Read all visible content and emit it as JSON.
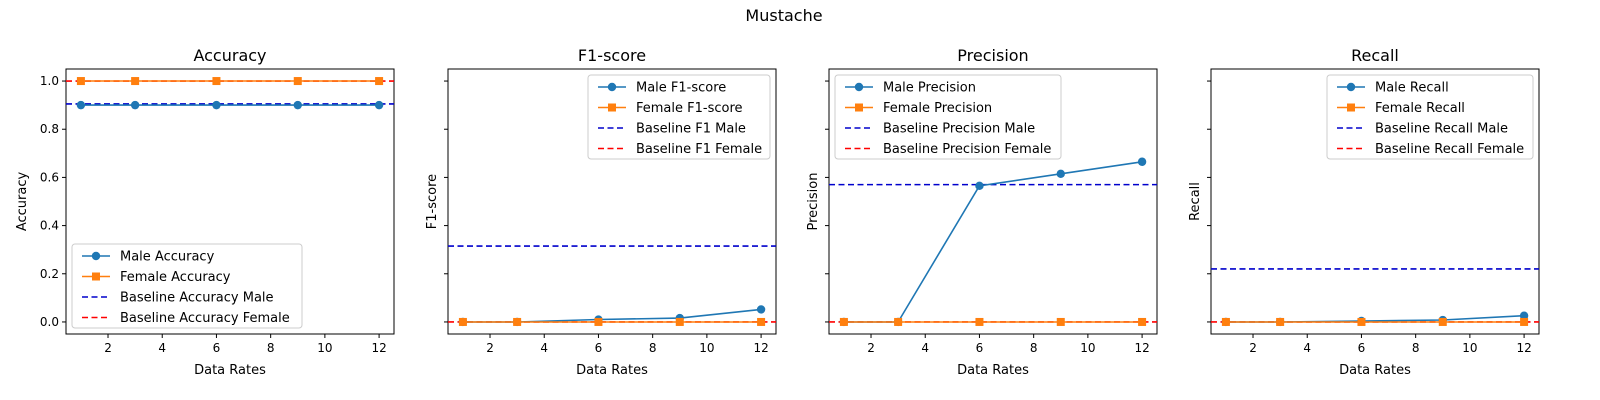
{
  "figure": {
    "suptitle": "Mustache"
  },
  "chart_data": [
    {
      "type": "line",
      "title": "Accuracy",
      "xlabel": "Data Rates",
      "ylabel": "Accuracy",
      "xlim": [
        0.45,
        12.55
      ],
      "ylim": [
        -0.05,
        1.05
      ],
      "xticks": [
        2,
        4,
        6,
        8,
        10,
        12
      ],
      "yticks": [
        0.0,
        0.2,
        0.4,
        0.6,
        0.8,
        1.0
      ],
      "ytick_labels": [
        "0.0",
        "0.2",
        "0.4",
        "0.6",
        "0.8",
        "1.0"
      ],
      "show_yticklabels": true,
      "legend_position": "lower-left",
      "x": [
        1,
        3,
        6,
        9,
        12
      ],
      "series": [
        {
          "name": "Male Accuracy",
          "values": [
            0.9,
            0.9,
            0.9,
            0.9,
            0.9
          ],
          "color": "#1f77b4",
          "marker": "circle"
        },
        {
          "name": "Female Accuracy",
          "values": [
            1.0,
            1.0,
            1.0,
            1.0,
            1.0
          ],
          "color": "#ff7f0e",
          "marker": "square"
        }
      ],
      "baselines": [
        {
          "name": "Baseline Accuracy Male",
          "value": 0.905,
          "color": "#0000cc"
        },
        {
          "name": "Baseline Accuracy Female",
          "value": 1.0,
          "color": "#ff0000"
        }
      ]
    },
    {
      "type": "line",
      "title": "F1-score",
      "xlabel": "Data Rates",
      "ylabel": "F1-score",
      "xlim": [
        0.45,
        12.55
      ],
      "ylim": [
        -0.05,
        1.05
      ],
      "xticks": [
        2,
        4,
        6,
        8,
        10,
        12
      ],
      "yticks": [
        0.0,
        0.2,
        0.4,
        0.6,
        0.8,
        1.0
      ],
      "show_yticklabels": false,
      "legend_position": "upper-right",
      "x": [
        1,
        3,
        6,
        9,
        12
      ],
      "series": [
        {
          "name": "Male F1-score",
          "values": [
            0.0,
            0.0,
            0.01,
            0.016,
            0.052
          ],
          "color": "#1f77b4",
          "marker": "circle"
        },
        {
          "name": "Female F1-score",
          "values": [
            0.0,
            0.0,
            0.0,
            0.0,
            0.0
          ],
          "color": "#ff7f0e",
          "marker": "square"
        }
      ],
      "baselines": [
        {
          "name": "Baseline F1 Male",
          "value": 0.315,
          "color": "#0000cc"
        },
        {
          "name": "Baseline F1 Female",
          "value": 0.0,
          "color": "#ff0000"
        }
      ]
    },
    {
      "type": "line",
      "title": "Precision",
      "xlabel": "Data Rates",
      "ylabel": "Precision",
      "xlim": [
        0.45,
        12.55
      ],
      "ylim": [
        -0.05,
        1.05
      ],
      "xticks": [
        2,
        4,
        6,
        8,
        10,
        12
      ],
      "yticks": [
        0.0,
        0.2,
        0.4,
        0.6,
        0.8,
        1.0
      ],
      "show_yticklabels": false,
      "legend_position": "upper-left",
      "x": [
        1,
        3,
        6,
        9,
        12
      ],
      "series": [
        {
          "name": "Male Precision",
          "values": [
            0.0,
            0.0,
            0.565,
            0.615,
            0.665
          ],
          "color": "#1f77b4",
          "marker": "circle"
        },
        {
          "name": "Female Precision",
          "values": [
            0.0,
            0.0,
            0.0,
            0.0,
            0.0
          ],
          "color": "#ff7f0e",
          "marker": "square"
        }
      ],
      "baselines": [
        {
          "name": "Baseline Precision Male",
          "value": 0.57,
          "color": "#0000cc"
        },
        {
          "name": "Baseline Precision Female",
          "value": 0.0,
          "color": "#ff0000"
        }
      ]
    },
    {
      "type": "line",
      "title": "Recall",
      "xlabel": "Data Rates",
      "ylabel": "Recall",
      "xlim": [
        0.45,
        12.55
      ],
      "ylim": [
        -0.05,
        1.05
      ],
      "xticks": [
        2,
        4,
        6,
        8,
        10,
        12
      ],
      "yticks": [
        0.0,
        0.2,
        0.4,
        0.6,
        0.8,
        1.0
      ],
      "show_yticklabels": false,
      "legend_position": "upper-right",
      "x": [
        1,
        3,
        6,
        9,
        12
      ],
      "series": [
        {
          "name": "Male Recall",
          "values": [
            0.0,
            0.0,
            0.004,
            0.008,
            0.026
          ],
          "color": "#1f77b4",
          "marker": "circle"
        },
        {
          "name": "Female Recall",
          "values": [
            0.0,
            0.0,
            0.0,
            0.0,
            0.0
          ],
          "color": "#ff7f0e",
          "marker": "square"
        }
      ],
      "baselines": [
        {
          "name": "Baseline Recall Male",
          "value": 0.22,
          "color": "#0000cc"
        },
        {
          "name": "Baseline Recall Female",
          "value": 0.0,
          "color": "#ff0000"
        }
      ]
    }
  ]
}
